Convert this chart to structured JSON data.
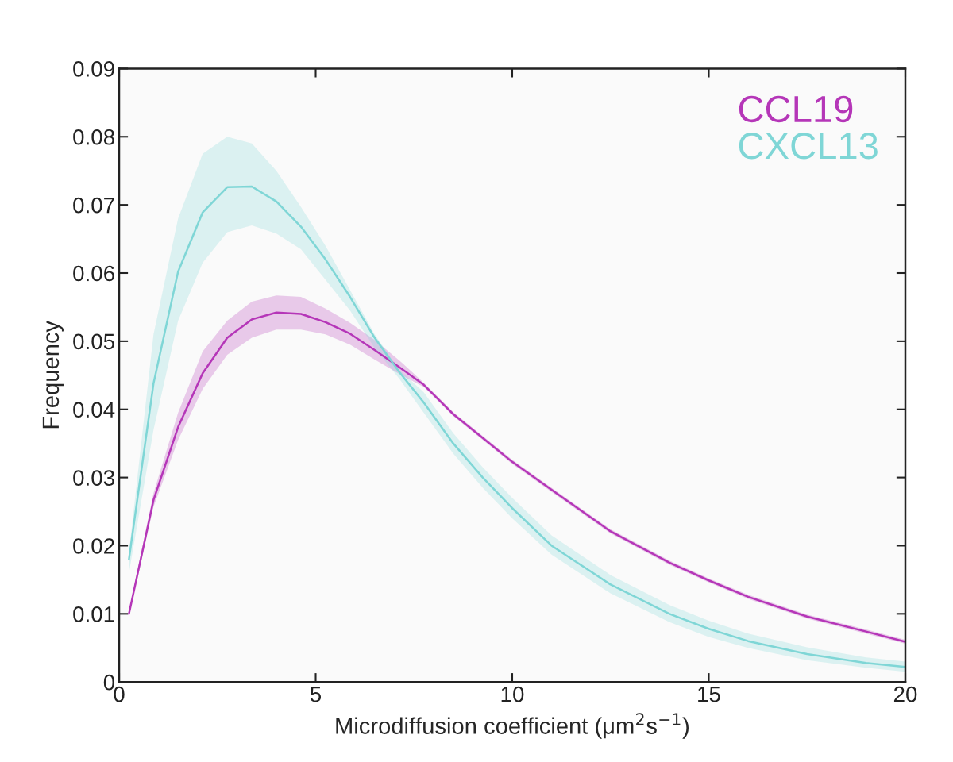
{
  "chart_data": {
    "type": "line",
    "xlabel": "Microdiffusion coefficient (μm$^{2}$s$^{−1}$)",
    "ylabel": "Frequency",
    "xlim": [
      0,
      20
    ],
    "xticks": [
      0,
      5,
      10,
      15,
      20
    ],
    "ylim": [
      0,
      0.09
    ],
    "yticks": [
      0,
      0.01,
      0.02,
      0.03,
      0.04,
      0.05,
      0.06,
      0.07,
      0.08,
      0.09
    ],
    "x": [
      0.25,
      0.875,
      1.5,
      2.125,
      2.75,
      3.375,
      4.0,
      4.625,
      5.25,
      5.875,
      6.5,
      7.125,
      7.75,
      8.5,
      9.25,
      10,
      11,
      12.5,
      14,
      15,
      16,
      17.5,
      19,
      20
    ],
    "grid": false,
    "legend": "top right",
    "marker": "none",
    "line_style": "solid",
    "series": [
      {
        "name": "CCL19",
        "color": "#b536b8",
        "values": [
          0.01,
          0.0267,
          0.0374,
          0.0453,
          0.0505,
          0.0532,
          0.0542,
          0.054,
          0.0528,
          0.0511,
          0.0487,
          0.0462,
          0.0436,
          0.0393,
          0.0358,
          0.0323,
          0.0282,
          0.0221,
          0.0175,
          0.0149,
          0.0125,
          0.0096,
          0.0074,
          0.0059
        ],
        "lower": [
          0.0097,
          0.0257,
          0.0355,
          0.043,
          0.048,
          0.0505,
          0.0517,
          0.0517,
          0.051,
          0.0495,
          0.0473,
          0.0452,
          0.0433,
          0.039,
          0.0355,
          0.032,
          0.0279,
          0.0218,
          0.0172,
          0.0146,
          0.0122,
          0.0093,
          0.0071,
          0.0056
        ],
        "upper": [
          0.0103,
          0.0277,
          0.0395,
          0.0485,
          0.053,
          0.0558,
          0.0567,
          0.0565,
          0.0548,
          0.0527,
          0.0502,
          0.0472,
          0.0439,
          0.0396,
          0.0361,
          0.0326,
          0.0285,
          0.0224,
          0.0178,
          0.0152,
          0.0128,
          0.0099,
          0.0077,
          0.0062
        ]
      },
      {
        "name": "CXCL13",
        "color": "#7fd6d6",
        "values": [
          0.018,
          0.0438,
          0.0602,
          0.0689,
          0.0726,
          0.0727,
          0.0705,
          0.0668,
          0.062,
          0.0565,
          0.0505,
          0.0455,
          0.041,
          0.035,
          0.03,
          0.0255,
          0.02,
          0.0143,
          0.01,
          0.0078,
          0.006,
          0.0041,
          0.0028,
          0.0022
        ],
        "lower": [
          0.016,
          0.037,
          0.053,
          0.0615,
          0.066,
          0.067,
          0.0658,
          0.0635,
          0.059,
          0.0545,
          0.049,
          0.0445,
          0.0395,
          0.0335,
          0.0285,
          0.024,
          0.0187,
          0.013,
          0.0088,
          0.0066,
          0.005,
          0.0032,
          0.0021,
          0.0015
        ],
        "upper": [
          0.019,
          0.051,
          0.068,
          0.0775,
          0.08,
          0.079,
          0.075,
          0.0697,
          0.064,
          0.0575,
          0.051,
          0.0458,
          0.0425,
          0.0365,
          0.0315,
          0.027,
          0.0215,
          0.0157,
          0.0113,
          0.009,
          0.0071,
          0.0051,
          0.0036,
          0.003
        ]
      }
    ]
  }
}
